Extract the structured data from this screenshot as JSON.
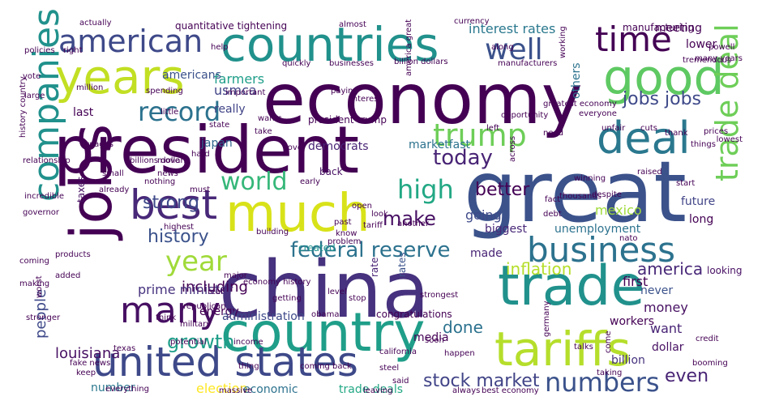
{
  "words": [
    {
      "text": "economy",
      "color": "#440154"
    },
    {
      "text": "china",
      "color": "#46327e"
    },
    {
      "text": "president",
      "color": "#440154"
    },
    {
      "text": "great",
      "color": "#3b528b"
    },
    {
      "text": "countries",
      "color": "#21918c"
    },
    {
      "text": "jobs",
      "color": "#440154"
    },
    {
      "text": "trade",
      "color": "#21918c"
    },
    {
      "text": "country",
      "color": "#1f9e89"
    },
    {
      "text": "tariffs",
      "color": "#b5de2b"
    },
    {
      "text": "years",
      "color": "#c2df23"
    },
    {
      "text": "much",
      "color": "#d8e219"
    },
    {
      "text": "good",
      "color": "#5ec962"
    },
    {
      "text": "united states",
      "color": "#3e4989"
    },
    {
      "text": "best",
      "color": "#482878"
    },
    {
      "text": "deal",
      "color": "#2a788e"
    },
    {
      "text": "american",
      "color": "#3e4989"
    },
    {
      "text": "companies",
      "color": "#21918c"
    },
    {
      "text": "business",
      "color": "#2c728e"
    },
    {
      "text": "trade deal",
      "color": "#6ece58"
    },
    {
      "text": "well",
      "color": "#3b528b"
    },
    {
      "text": "time",
      "color": "#440154"
    },
    {
      "text": "many",
      "color": "#471063"
    },
    {
      "text": "record",
      "color": "#2c728e"
    },
    {
      "text": "trump",
      "color": "#6ece58"
    },
    {
      "text": "world",
      "color": "#35b779"
    },
    {
      "text": "high",
      "color": "#22a884"
    },
    {
      "text": "year",
      "color": "#a0da39"
    },
    {
      "text": "numbers",
      "color": "#3b528b"
    },
    {
      "text": "federal reserve",
      "color": "#2c728e"
    },
    {
      "text": "jobs jobs",
      "color": "#3e4989"
    },
    {
      "text": "today",
      "color": "#482475"
    },
    {
      "text": "growth",
      "color": "#1f9e89"
    },
    {
      "text": "history",
      "color": "#3b528b"
    },
    {
      "text": "strong",
      "color": "#3e4989"
    },
    {
      "text": "inflation",
      "color": "#b5de2b"
    },
    {
      "text": "stock market",
      "color": "#414487"
    },
    {
      "text": "better",
      "color": "#440154"
    },
    {
      "text": "make",
      "color": "#471063"
    },
    {
      "text": "america",
      "color": "#482878"
    },
    {
      "text": "done",
      "color": "#2c728e"
    },
    {
      "text": "people",
      "color": "#3e4989"
    },
    {
      "text": "louisiana",
      "color": "#471063"
    },
    {
      "text": "including",
      "color": "#440154"
    },
    {
      "text": "prime minister",
      "color": "#46327e"
    },
    {
      "text": "even",
      "color": "#482475"
    },
    {
      "text": "money",
      "color": "#471063"
    },
    {
      "text": "election",
      "color": "#fde725"
    },
    {
      "text": "usmca",
      "color": "#414487"
    },
    {
      "text": "farmers",
      "color": "#1f9e89"
    },
    {
      "text": "going",
      "color": "#3e4989"
    },
    {
      "text": "mexico",
      "color": "#a0da39"
    },
    {
      "text": "interest rates",
      "color": "#2a788e"
    },
    {
      "text": "meeting",
      "color": "#440154"
    },
    {
      "text": "lower",
      "color": "#440154"
    },
    {
      "text": "americans",
      "color": "#3b528b"
    },
    {
      "text": "really",
      "color": "#414487"
    },
    {
      "text": "last",
      "color": "#440154"
    },
    {
      "text": "japan",
      "color": "#31688e"
    },
    {
      "text": "president trump",
      "color": "#440154"
    },
    {
      "text": "long",
      "color": "#440154"
    },
    {
      "text": "democrats",
      "color": "#482475"
    },
    {
      "text": "marketfast",
      "color": "#2c728e"
    },
    {
      "text": "back",
      "color": "#471063"
    },
    {
      "text": "future",
      "color": "#414487"
    },
    {
      "text": "unemployment",
      "color": "#2c728e"
    },
    {
      "text": "made",
      "color": "#482475"
    },
    {
      "text": "biggest",
      "color": "#482878"
    },
    {
      "text": "first",
      "color": "#440154"
    },
    {
      "text": "want",
      "color": "#482475"
    },
    {
      "text": "dollar",
      "color": "#471063"
    },
    {
      "text": "never",
      "color": "#3b528b"
    },
    {
      "text": "created",
      "color": "#21918c"
    },
    {
      "text": "energy",
      "color": "#440154"
    },
    {
      "text": "administration",
      "color": "#3e4989"
    },
    {
      "text": "congratulations",
      "color": "#440154"
    },
    {
      "text": "media",
      "color": "#440154"
    },
    {
      "text": "economic",
      "color": "#2c728e"
    },
    {
      "text": "trade deals",
      "color": "#22a884"
    },
    {
      "text": "number",
      "color": "#2a788e"
    },
    {
      "text": "taxes",
      "color": "#471063"
    },
    {
      "text": "others",
      "color": "#2c728e"
    },
    {
      "text": "billion",
      "color": "#46327e"
    },
    {
      "text": "workers",
      "color": "#440154"
    },
    {
      "text": "rates",
      "color": "#3b528b"
    },
    {
      "text": "rate",
      "color": "#482475"
    },
    {
      "text": "looking",
      "color": "#471063"
    },
    {
      "text": "manufacturing",
      "color": "#440154"
    },
    {
      "text": "quantitative tightening",
      "color": "#440154"
    },
    {
      "text": "almost",
      "color": "#440154"
    },
    {
      "text": "currency",
      "color": "#440154"
    },
    {
      "text": "actually",
      "color": "#440154"
    },
    {
      "text": "powell",
      "color": "#440154"
    },
    {
      "text": "many years",
      "color": "#440154"
    },
    {
      "text": "tremendous",
      "color": "#440154"
    },
    {
      "text": "policies",
      "color": "#440154"
    },
    {
      "text": "right",
      "color": "#440154"
    },
    {
      "text": "help",
      "color": "#440154"
    },
    {
      "text": "along",
      "color": "#440154"
    },
    {
      "text": "quickly",
      "color": "#440154"
    },
    {
      "text": "businesses",
      "color": "#440154"
    },
    {
      "text": "billion dollars",
      "color": "#440154"
    },
    {
      "text": "manufacturers",
      "color": "#440154"
    },
    {
      "text": "working",
      "color": "#440154"
    },
    {
      "text": "vote",
      "color": "#440154"
    },
    {
      "text": "million",
      "color": "#440154"
    },
    {
      "text": "large",
      "color": "#440154"
    },
    {
      "text": "spending",
      "color": "#440154"
    },
    {
      "text": "important",
      "color": "#440154"
    },
    {
      "text": "paying",
      "color": "#440154"
    },
    {
      "text": "interest",
      "color": "#440154"
    },
    {
      "text": "america great",
      "color": "#440154"
    },
    {
      "text": "greatest economy",
      "color": "#440154"
    },
    {
      "text": "little",
      "color": "#440154"
    },
    {
      "text": "everyone",
      "color": "#440154"
    },
    {
      "text": "opportunity",
      "color": "#440154"
    },
    {
      "text": "state",
      "color": "#440154"
    },
    {
      "text": "wants",
      "color": "#440154"
    },
    {
      "text": "take",
      "color": "#440154"
    },
    {
      "text": "left",
      "color": "#440154"
    },
    {
      "text": "need",
      "color": "#440154"
    },
    {
      "text": "unfair",
      "color": "#440154"
    },
    {
      "text": "cuts",
      "color": "#440154"
    },
    {
      "text": "thank",
      "color": "#440154"
    },
    {
      "text": "prices",
      "color": "#440154"
    },
    {
      "text": "things",
      "color": "#440154"
    },
    {
      "text": "lowest",
      "color": "#440154"
    },
    {
      "text": "news",
      "color": "#440154"
    },
    {
      "text": "history country",
      "color": "#440154"
    },
    {
      "text": "wages",
      "color": "#440154"
    },
    {
      "text": "hard",
      "color": "#440154"
    },
    {
      "text": "love",
      "color": "#440154"
    },
    {
      "text": "move",
      "color": "#440154"
    },
    {
      "text": "billions dollars",
      "color": "#440154"
    },
    {
      "text": "relationship",
      "color": "#440154"
    },
    {
      "text": "winning",
      "color": "#440154"
    },
    {
      "text": "raised",
      "color": "#440154"
    },
    {
      "text": "nothing",
      "color": "#440154"
    },
    {
      "text": "must",
      "color": "#440154"
    },
    {
      "text": "across",
      "color": "#440154"
    },
    {
      "text": "early",
      "color": "#440154"
    },
    {
      "text": "small",
      "color": "#440154"
    },
    {
      "text": "start",
      "color": "#440154"
    },
    {
      "text": "incredible",
      "color": "#440154"
    },
    {
      "text": "thousands",
      "color": "#440154"
    },
    {
      "text": "already",
      "color": "#440154"
    },
    {
      "text": "despite",
      "color": "#440154"
    },
    {
      "text": "open",
      "color": "#440154"
    },
    {
      "text": "past",
      "color": "#440154"
    },
    {
      "text": "look",
      "color": "#440154"
    },
    {
      "text": "debt",
      "color": "#440154"
    },
    {
      "text": "know",
      "color": "#440154"
    },
    {
      "text": "tariff",
      "color": "#440154"
    },
    {
      "text": "governor",
      "color": "#440154"
    },
    {
      "text": "another",
      "color": "#440154"
    },
    {
      "text": "highest",
      "color": "#440154"
    },
    {
      "text": "building",
      "color": "#440154"
    },
    {
      "text": "problem",
      "color": "#440154"
    },
    {
      "text": "fact",
      "color": "#440154"
    },
    {
      "text": "nato",
      "color": "#440154"
    },
    {
      "text": "coming",
      "color": "#440154"
    },
    {
      "text": "products",
      "color": "#440154"
    },
    {
      "text": "worst",
      "color": "#440154"
    },
    {
      "text": "added",
      "color": "#440154"
    },
    {
      "text": "economy history",
      "color": "#440154"
    },
    {
      "text": "real",
      "color": "#440154"
    },
    {
      "text": "getting",
      "color": "#440154"
    },
    {
      "text": "level",
      "color": "#440154"
    },
    {
      "text": "stop",
      "color": "#440154"
    },
    {
      "text": "making",
      "color": "#440154"
    },
    {
      "text": "major",
      "color": "#440154"
    },
    {
      "text": "republican",
      "color": "#440154"
    },
    {
      "text": "strongest",
      "color": "#440154"
    },
    {
      "text": "obama",
      "color": "#440154"
    },
    {
      "text": "stronger",
      "color": "#440154"
    },
    {
      "text": "think",
      "color": "#440154"
    },
    {
      "text": "military",
      "color": "#440154"
    },
    {
      "text": "texas",
      "color": "#440154"
    },
    {
      "text": "fake news",
      "color": "#440154"
    },
    {
      "text": "potential",
      "color": "#440154"
    },
    {
      "text": "income",
      "color": "#440154"
    },
    {
      "text": "soon",
      "color": "#440154"
    },
    {
      "text": "california",
      "color": "#440154"
    },
    {
      "text": "happen",
      "color": "#440154"
    },
    {
      "text": "credit",
      "color": "#440154"
    },
    {
      "text": "germany",
      "color": "#440154"
    },
    {
      "text": "talks",
      "color": "#440154"
    },
    {
      "text": "come",
      "color": "#440154"
    },
    {
      "text": "keep",
      "color": "#440154"
    },
    {
      "text": "thing",
      "color": "#440154"
    },
    {
      "text": "coming back",
      "color": "#440154"
    },
    {
      "text": "steel",
      "color": "#440154"
    },
    {
      "text": "said",
      "color": "#440154"
    },
    {
      "text": "taking",
      "color": "#440154"
    },
    {
      "text": "booming",
      "color": "#440154"
    },
    {
      "text": "everything",
      "color": "#440154"
    },
    {
      "text": "massive",
      "color": "#440154"
    },
    {
      "text": "leaving",
      "color": "#440154"
    },
    {
      "text": "always",
      "color": "#440154"
    },
    {
      "text": "best economy",
      "color": "#440154"
    }
  ]
}
